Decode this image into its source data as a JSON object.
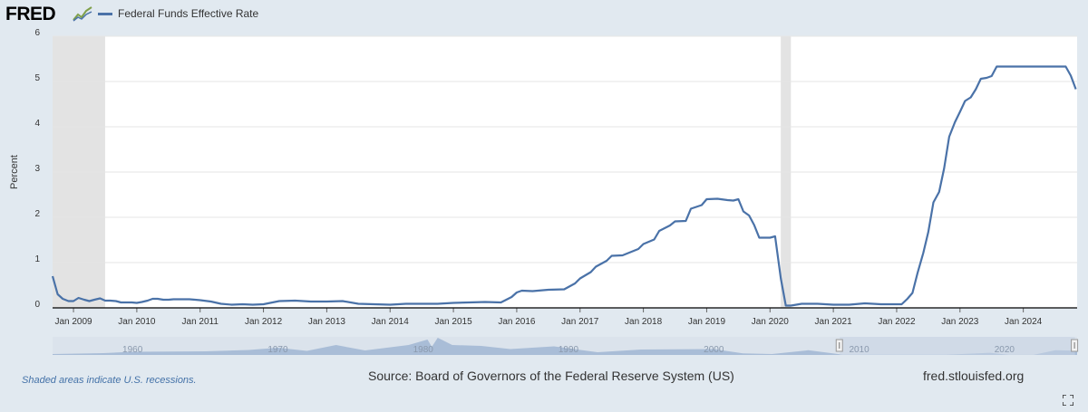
{
  "header": {
    "logo_text": "FRED",
    "logo_icon": "fred-chart-icon",
    "legend_label": "Federal Funds Effective Rate"
  },
  "footer": {
    "recession_note": "Shaded areas indicate U.S. recessions.",
    "source": "Source: Board of Governors of the Federal Reserve System (US)",
    "site": "fred.stlouisfed.org",
    "fullscreen_icon": "fullscreen-icon"
  },
  "colors": {
    "line": "#4a72a8",
    "recession": "#e3e3e3",
    "background": "#e1e9f0",
    "plot": "#ffffff",
    "navigator_fill": "#a9bdd7",
    "navigator_selection": "#c7d3e3"
  },
  "navigator": {
    "tick_labels": [
      "1960",
      "1970",
      "1980",
      "1990",
      "2000",
      "2010",
      "2020"
    ],
    "selected_range": [
      2008.67,
      2024.85
    ]
  },
  "chart_data": {
    "type": "line",
    "title": "",
    "xlabel": "",
    "ylabel": "Percent",
    "ylim": [
      0,
      6
    ],
    "xlim": [
      2008.67,
      2024.85
    ],
    "y_ticks": [
      0,
      1,
      2,
      3,
      4,
      5,
      6
    ],
    "x_tick_labels": [
      "Jan 2009",
      "Jan 2010",
      "Jan 2011",
      "Jan 2012",
      "Jan 2013",
      "Jan 2014",
      "Jan 2015",
      "Jan 2016",
      "Jan 2017",
      "Jan 2018",
      "Jan 2019",
      "Jan 2020",
      "Jan 2021",
      "Jan 2022",
      "Jan 2023",
      "Jan 2024"
    ],
    "grid": true,
    "recessions": [
      [
        2008.67,
        2009.5
      ],
      [
        2020.17,
        2020.33
      ]
    ],
    "series": [
      {
        "name": "Federal Funds Effective Rate",
        "x": [
          2008.67,
          2008.75,
          2008.83,
          2008.92,
          2009.0,
          2009.08,
          2009.17,
          2009.25,
          2009.33,
          2009.42,
          2009.5,
          2009.58,
          2009.67,
          2009.75,
          2009.83,
          2009.92,
          2010.0,
          2010.08,
          2010.17,
          2010.25,
          2010.33,
          2010.42,
          2010.5,
          2010.58,
          2010.67,
          2010.75,
          2010.83,
          2010.92,
          2011.0,
          2011.17,
          2011.33,
          2011.5,
          2011.67,
          2011.83,
          2012.0,
          2012.25,
          2012.5,
          2012.75,
          2013.0,
          2013.25,
          2013.5,
          2013.75,
          2014.0,
          2014.25,
          2014.5,
          2014.75,
          2015.0,
          2015.25,
          2015.5,
          2015.75,
          2015.92,
          2016.0,
          2016.08,
          2016.25,
          2016.5,
          2016.75,
          2016.92,
          2017.0,
          2017.17,
          2017.25,
          2017.42,
          2017.5,
          2017.67,
          2017.92,
          2018.0,
          2018.17,
          2018.25,
          2018.42,
          2018.5,
          2018.67,
          2018.75,
          2018.92,
          2019.0,
          2019.17,
          2019.33,
          2019.42,
          2019.5,
          2019.58,
          2019.67,
          2019.75,
          2019.83,
          2020.0,
          2020.08,
          2020.17,
          2020.25,
          2020.33,
          2020.5,
          2020.75,
          2021.0,
          2021.25,
          2021.5,
          2021.75,
          2022.0,
          2022.08,
          2022.17,
          2022.25,
          2022.33,
          2022.42,
          2022.5,
          2022.58,
          2022.67,
          2022.75,
          2022.83,
          2022.92,
          2023.0,
          2023.08,
          2023.17,
          2023.25,
          2023.33,
          2023.42,
          2023.5,
          2023.58,
          2023.67,
          2023.83,
          2024.0,
          2024.25,
          2024.5,
          2024.67,
          2024.75,
          2024.83
        ],
        "y": [
          0.7,
          0.3,
          0.2,
          0.15,
          0.15,
          0.22,
          0.18,
          0.15,
          0.18,
          0.21,
          0.16,
          0.16,
          0.15,
          0.12,
          0.12,
          0.12,
          0.11,
          0.13,
          0.16,
          0.2,
          0.2,
          0.18,
          0.18,
          0.19,
          0.19,
          0.19,
          0.19,
          0.18,
          0.17,
          0.14,
          0.09,
          0.07,
          0.08,
          0.07,
          0.08,
          0.15,
          0.16,
          0.14,
          0.14,
          0.15,
          0.09,
          0.08,
          0.07,
          0.09,
          0.09,
          0.09,
          0.11,
          0.12,
          0.13,
          0.12,
          0.24,
          0.34,
          0.38,
          0.37,
          0.4,
          0.41,
          0.54,
          0.65,
          0.79,
          0.91,
          1.04,
          1.15,
          1.16,
          1.3,
          1.41,
          1.51,
          1.7,
          1.82,
          1.91,
          1.92,
          2.19,
          2.27,
          2.4,
          2.41,
          2.38,
          2.37,
          2.4,
          2.13,
          2.04,
          1.83,
          1.55,
          1.55,
          1.58,
          0.65,
          0.05,
          0.05,
          0.09,
          0.09,
          0.07,
          0.07,
          0.1,
          0.08,
          0.08,
          0.08,
          0.2,
          0.33,
          0.77,
          1.21,
          1.68,
          2.33,
          2.56,
          3.08,
          3.78,
          4.1,
          4.33,
          4.57,
          4.65,
          4.83,
          5.06,
          5.08,
          5.12,
          5.33,
          5.33,
          5.33,
          5.33,
          5.33,
          5.33,
          5.33,
          5.13,
          4.83
        ]
      }
    ]
  }
}
